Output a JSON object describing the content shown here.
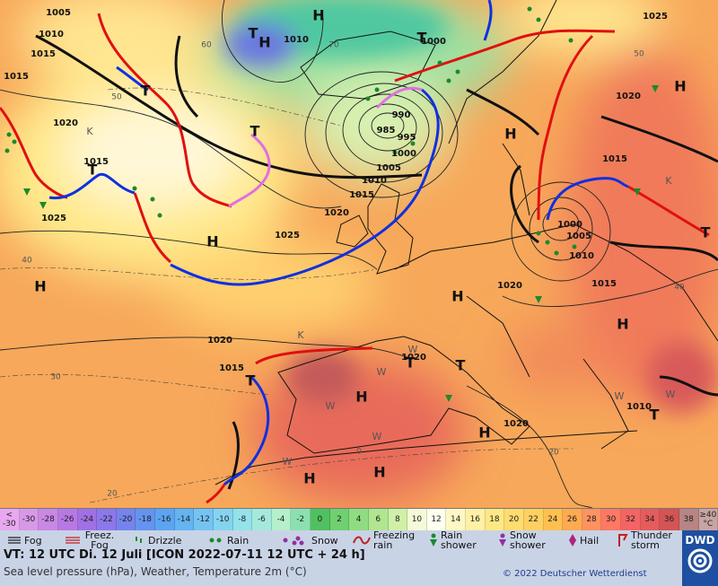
{
  "map": {
    "labels": [
      "H",
      "H",
      "T",
      "1005",
      "1010",
      "1015",
      "1015",
      "1020",
      "1015",
      "1025",
      "1010",
      "1000",
      "990",
      "985",
      "995",
      "1000",
      "1005",
      "1010",
      "1015",
      "1020",
      "1025",
      "H",
      "H",
      "T",
      "T",
      "T",
      "T",
      "K",
      "H",
      "1015",
      "1020",
      "H",
      "K",
      "T",
      "1000",
      "1005",
      "1010",
      "1015",
      "1020",
      "H",
      "H",
      "1020",
      "1015",
      "T",
      "K",
      "H",
      "T",
      "1020",
      "T",
      "H",
      "1020",
      "1010",
      "T",
      "H",
      "H",
      "1025",
      "60",
      "70",
      "50",
      "40",
      "30",
      "20",
      "20",
      "0",
      "40",
      "50",
      "W",
      "W",
      "W",
      "W",
      "W",
      "W",
      "W"
    ]
  },
  "scale": [
    {
      "label": "< -30",
      "color": "#e8a8f0"
    },
    {
      "label": "-30",
      "color": "#d898e8"
    },
    {
      "label": "-28",
      "color": "#c888e4"
    },
    {
      "label": "-26",
      "color": "#b878e4"
    },
    {
      "label": "-24",
      "color": "#a070e4"
    },
    {
      "label": "-22",
      "color": "#8c78ea"
    },
    {
      "label": "-20",
      "color": "#7484ec"
    },
    {
      "label": "-18",
      "color": "#6494f0"
    },
    {
      "label": "-16",
      "color": "#5ca4f2"
    },
    {
      "label": "-14",
      "color": "#64b4f2"
    },
    {
      "label": "-12",
      "color": "#74c4f2"
    },
    {
      "label": "-10",
      "color": "#84d4f0"
    },
    {
      "label": "-8",
      "color": "#94e2ea"
    },
    {
      "label": "-6",
      "color": "#a4eadc"
    },
    {
      "label": "-4",
      "color": "#b4f0cc"
    },
    {
      "label": "-2",
      "color": "#8ce0b0"
    },
    {
      "label": "0",
      "color": "#50c060"
    },
    {
      "label": "2",
      "color": "#70d070"
    },
    {
      "label": "4",
      "color": "#90dc80"
    },
    {
      "label": "6",
      "color": "#b0e690"
    },
    {
      "label": "8",
      "color": "#d0f0a8"
    },
    {
      "label": "10",
      "color": "#f4fad8"
    },
    {
      "label": "12",
      "color": "#fffff0"
    },
    {
      "label": "14",
      "color": "#fff8c4"
    },
    {
      "label": "16",
      "color": "#fff0a4"
    },
    {
      "label": "18",
      "color": "#ffe884"
    },
    {
      "label": "20",
      "color": "#ffdc70"
    },
    {
      "label": "22",
      "color": "#ffd060"
    },
    {
      "label": "24",
      "color": "#ffc050"
    },
    {
      "label": "26",
      "color": "#ffaa50"
    },
    {
      "label": "28",
      "color": "#ff9260"
    },
    {
      "label": "30",
      "color": "#ff7864"
    },
    {
      "label": "32",
      "color": "#f46464"
    },
    {
      "label": "34",
      "color": "#e45c5c"
    },
    {
      "label": "36",
      "color": "#d45454"
    },
    {
      "label": "38",
      "color": "#b88484"
    },
    {
      "label": "≥40 °C",
      "color": "#c8a4a4"
    }
  ],
  "legend": [
    "Fog",
    "Freez. Fog",
    "Drizzle",
    "Rain",
    "Snow",
    "Freezing rain",
    "Rain shower",
    "Snow shower",
    "Hail",
    "Thunder storm"
  ],
  "footer": {
    "valid_time": "VT: 12 UTC Di.  12 Juli [ICON 2022-07-11  12 UTC + 24 h]",
    "caption": "Sea level pressure (hPa), Weather, Temperature 2m (°C)",
    "copyright": "© 2022 Deutscher Wetterdienst",
    "logo": "DWD"
  }
}
